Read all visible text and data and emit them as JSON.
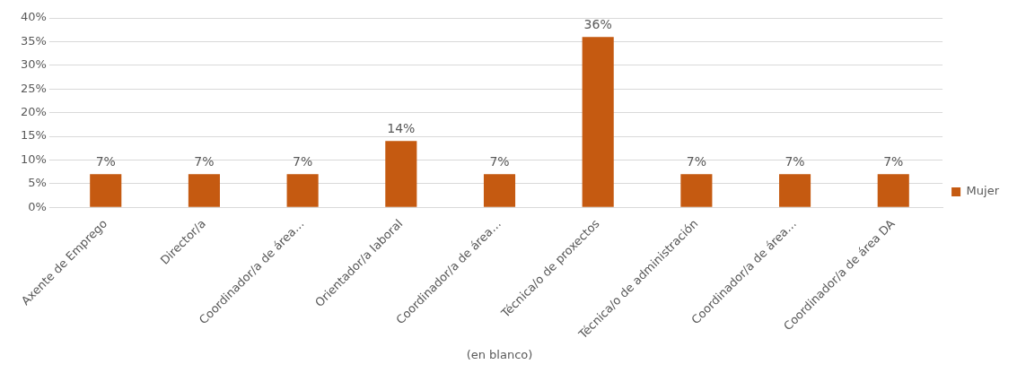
{
  "chart_data": {
    "type": "bar",
    "xlabel": "(en blanco)",
    "categories": [
      "Axente de Emprego",
      "Director/a",
      "Coordinador/a de área…",
      "Orientador/a laboral",
      "Coordinador/a de área…",
      "Técnica/o de proxectos",
      "Técnica/o de administración",
      "Coordinador/a de área…",
      "Coordinador/a de área DA"
    ],
    "series": [
      {
        "name": "Mujer",
        "color": "#c55a11",
        "values": [
          7,
          7,
          7,
          14,
          7,
          36,
          7,
          7,
          7
        ]
      }
    ],
    "value_labels": [
      "7%",
      "7%",
      "7%",
      "14%",
      "7%",
      "36%",
      "7%",
      "7%",
      "7%"
    ],
    "ylim": [
      0,
      40
    ],
    "yticks": [
      {
        "value": 0,
        "label": "0%"
      },
      {
        "value": 5,
        "label": "5%"
      },
      {
        "value": 10,
        "label": "10%"
      },
      {
        "value": 15,
        "label": "15%"
      },
      {
        "value": 20,
        "label": "20%"
      },
      {
        "value": 25,
        "label": "25%"
      },
      {
        "value": 30,
        "label": "30%"
      },
      {
        "value": 35,
        "label": "35%"
      },
      {
        "value": 40,
        "label": "40%"
      }
    ],
    "grid": "y",
    "legend": "right"
  }
}
